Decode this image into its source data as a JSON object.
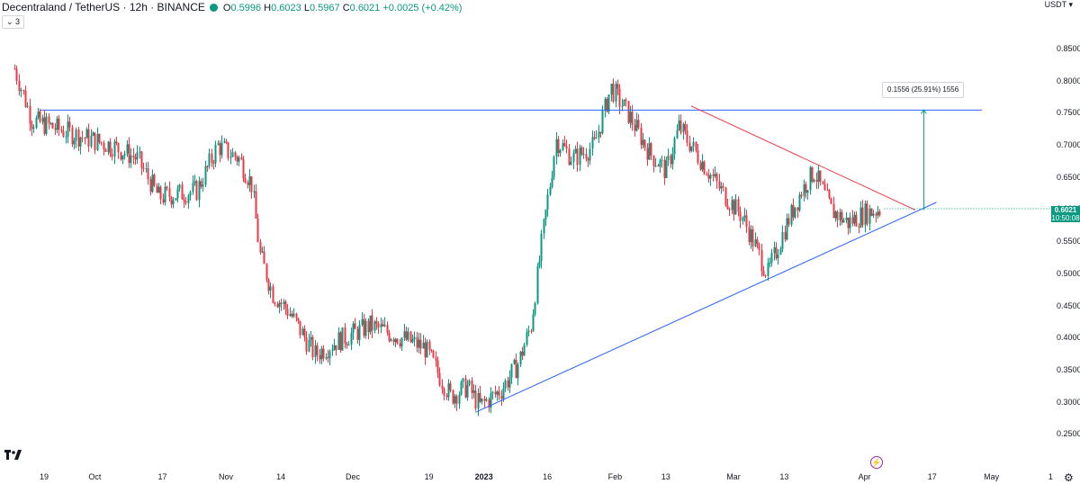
{
  "header": {
    "symbol": "Decentraland / TetherUS · 12h · BINANCE",
    "ohlc": {
      "o": "0.5996",
      "h": "0.6023",
      "l": "0.5967",
      "c": "0.6021",
      "change": "+0.0025 (+0.42%)"
    }
  },
  "indicator_toggle": "⌄ 3",
  "currency": "USDT ▾",
  "price_label": {
    "price": "0.6021",
    "countdown": "10:50:08"
  },
  "measure_label": "0.1556 (25.91%) 1556",
  "colors": {
    "up": "#089981",
    "down": "#f23645",
    "trend": "#2962ff",
    "resistance": "#f23645",
    "measure": "#089981"
  },
  "icons": {
    "logo": "tradingview-logo-icon",
    "flash": "flash-icon",
    "settings": "gear-icon"
  },
  "chart_data": {
    "type": "candlestick",
    "symbol": "Decentraland / TetherUS",
    "interval": "12h",
    "exchange": "BINANCE",
    "y_ticks": [
      "0.8500",
      "0.8000",
      "0.7500",
      "0.7000",
      "0.6500",
      "0.6000",
      "0.5500",
      "0.5000",
      "0.4500",
      "0.4000",
      "0.3500",
      "0.3000",
      "0.2500"
    ],
    "ylim": [
      0.235,
      0.885
    ],
    "x_ticks": [
      "19",
      "Oct",
      "17",
      "Nov",
      "14",
      "Dec",
      "19",
      "2023",
      "16",
      "Feb",
      "13",
      "Mar",
      "13",
      "Apr",
      "17",
      "May",
      "1"
    ],
    "last_price": 0.6021,
    "approx_closes_by_day": [
      {
        "d": "2022-09-12",
        "v": 0.82
      },
      {
        "d": "2022-09-16",
        "v": 0.74
      },
      {
        "d": "2022-09-25",
        "v": 0.72
      },
      {
        "d": "2022-10-05",
        "v": 0.7
      },
      {
        "d": "2022-10-11",
        "v": 0.68
      },
      {
        "d": "2022-10-16",
        "v": 0.62
      },
      {
        "d": "2022-10-25",
        "v": 0.63
      },
      {
        "d": "2022-10-30",
        "v": 0.7
      },
      {
        "d": "2022-11-04",
        "v": 0.68
      },
      {
        "d": "2022-11-07",
        "v": 0.64
      },
      {
        "d": "2022-11-09",
        "v": 0.53
      },
      {
        "d": "2022-11-12",
        "v": 0.47
      },
      {
        "d": "2022-11-16",
        "v": 0.44
      },
      {
        "d": "2022-11-22",
        "v": 0.375
      },
      {
        "d": "2022-11-27",
        "v": 0.395
      },
      {
        "d": "2022-12-05",
        "v": 0.42
      },
      {
        "d": "2022-12-11",
        "v": 0.405
      },
      {
        "d": "2022-12-18",
        "v": 0.385
      },
      {
        "d": "2022-12-24",
        "v": 0.31
      },
      {
        "d": "2022-12-28",
        "v": 0.325
      },
      {
        "d": "2022-12-31",
        "v": 0.295
      },
      {
        "d": "2023-01-05",
        "v": 0.32
      },
      {
        "d": "2023-01-09",
        "v": 0.36
      },
      {
        "d": "2023-01-12",
        "v": 0.42
      },
      {
        "d": "2023-01-15",
        "v": 0.57
      },
      {
        "d": "2023-01-18",
        "v": 0.71
      },
      {
        "d": "2023-01-22",
        "v": 0.68
      },
      {
        "d": "2023-01-27",
        "v": 0.7
      },
      {
        "d": "2023-01-31",
        "v": 0.79
      },
      {
        "d": "2023-02-04",
        "v": 0.75
      },
      {
        "d": "2023-02-09",
        "v": 0.69
      },
      {
        "d": "2023-02-13",
        "v": 0.66
      },
      {
        "d": "2023-02-16",
        "v": 0.73
      },
      {
        "d": "2023-02-20",
        "v": 0.69
      },
      {
        "d": "2023-02-26",
        "v": 0.63
      },
      {
        "d": "2023-03-03",
        "v": 0.59
      },
      {
        "d": "2023-03-09",
        "v": 0.5
      },
      {
        "d": "2023-03-13",
        "v": 0.57
      },
      {
        "d": "2023-03-17",
        "v": 0.63
      },
      {
        "d": "2023-03-20",
        "v": 0.66
      },
      {
        "d": "2023-03-24",
        "v": 0.6
      },
      {
        "d": "2023-03-28",
        "v": 0.58
      },
      {
        "d": "2023-04-01",
        "v": 0.595
      },
      {
        "d": "2023-04-05",
        "v": 0.6021
      }
    ],
    "drawings": {
      "resistance_line": {
        "price": 0.7556
      },
      "ascending_trendline": {
        "from": {
          "d": "2022-12-30",
          "p": 0.285
        },
        "to": {
          "d": "2023-04-18",
          "p": 0.612
        }
      },
      "descending_trendline": {
        "from": {
          "d": "2023-02-19",
          "p": 0.762
        },
        "to": {
          "d": "2023-04-13",
          "p": 0.6
        }
      },
      "measure": {
        "d": "2023-04-15",
        "from": 0.6,
        "to": 0.7556
      }
    }
  }
}
